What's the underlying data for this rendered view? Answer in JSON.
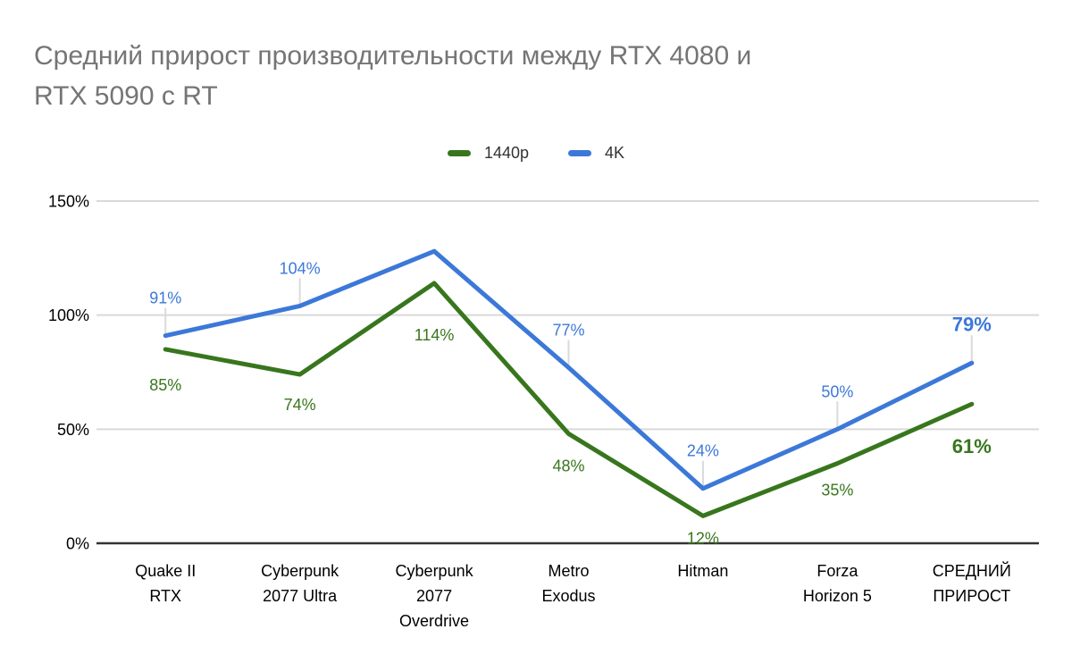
{
  "header": {
    "title_lines": [
      "Средний прирост производительности между RTX 4080 и",
      "RTX 5090 с RT"
    ],
    "title_color": "#757575"
  },
  "chart_data": {
    "type": "line",
    "title": "Средний прирост производительности между RTX 4080 и RTX 5090 с RT",
    "categories": [
      "Quake II RTX",
      "Cyberpunk 2077 Ultra",
      "Cyberpunk 2077 Overdrive",
      "Metro Exodus",
      "Hitman",
      "Forza Horizon 5",
      "СРЕДНИЙ ПРИРОСТ"
    ],
    "categories_wrapped": [
      [
        "Quake II",
        "RTX"
      ],
      [
        "Cyberpunk",
        "2077 Ultra"
      ],
      [
        "Cyberpunk",
        "2077",
        "Overdrive"
      ],
      [
        "Metro",
        "Exodus"
      ],
      [
        "Hitman"
      ],
      [
        "Forza",
        "Horizon 5"
      ],
      [
        "СРЕДНИЙ",
        "ПРИРОСТ"
      ]
    ],
    "series": [
      {
        "name": "1440p",
        "color": "#38761d",
        "values": [
          85,
          74,
          114,
          48,
          12,
          35,
          61
        ],
        "point_labels": [
          "85%",
          "74%",
          "114%",
          "48%",
          "12%",
          "35%",
          "61%"
        ]
      },
      {
        "name": "4K",
        "color": "#3c78d8",
        "values": [
          91,
          104,
          128,
          77,
          24,
          50,
          79
        ],
        "point_labels": [
          "91%",
          "104%",
          "",
          "77%",
          "24%",
          "50%",
          "79%"
        ]
      }
    ],
    "xlabel": "",
    "ylabel": "",
    "yticks": [
      {
        "value": 0,
        "label": "0%"
      },
      {
        "value": 50,
        "label": "50%"
      },
      {
        "value": 100,
        "label": "100%"
      },
      {
        "value": 150,
        "label": "150%"
      }
    ],
    "ylim": [
      0,
      150
    ],
    "grid": true,
    "legend_position": "top",
    "colors": {
      "gridline": "#d9d9d9",
      "axis_line": "#333333",
      "leader_line": "#dadada",
      "tick_text": "#000000"
    }
  }
}
